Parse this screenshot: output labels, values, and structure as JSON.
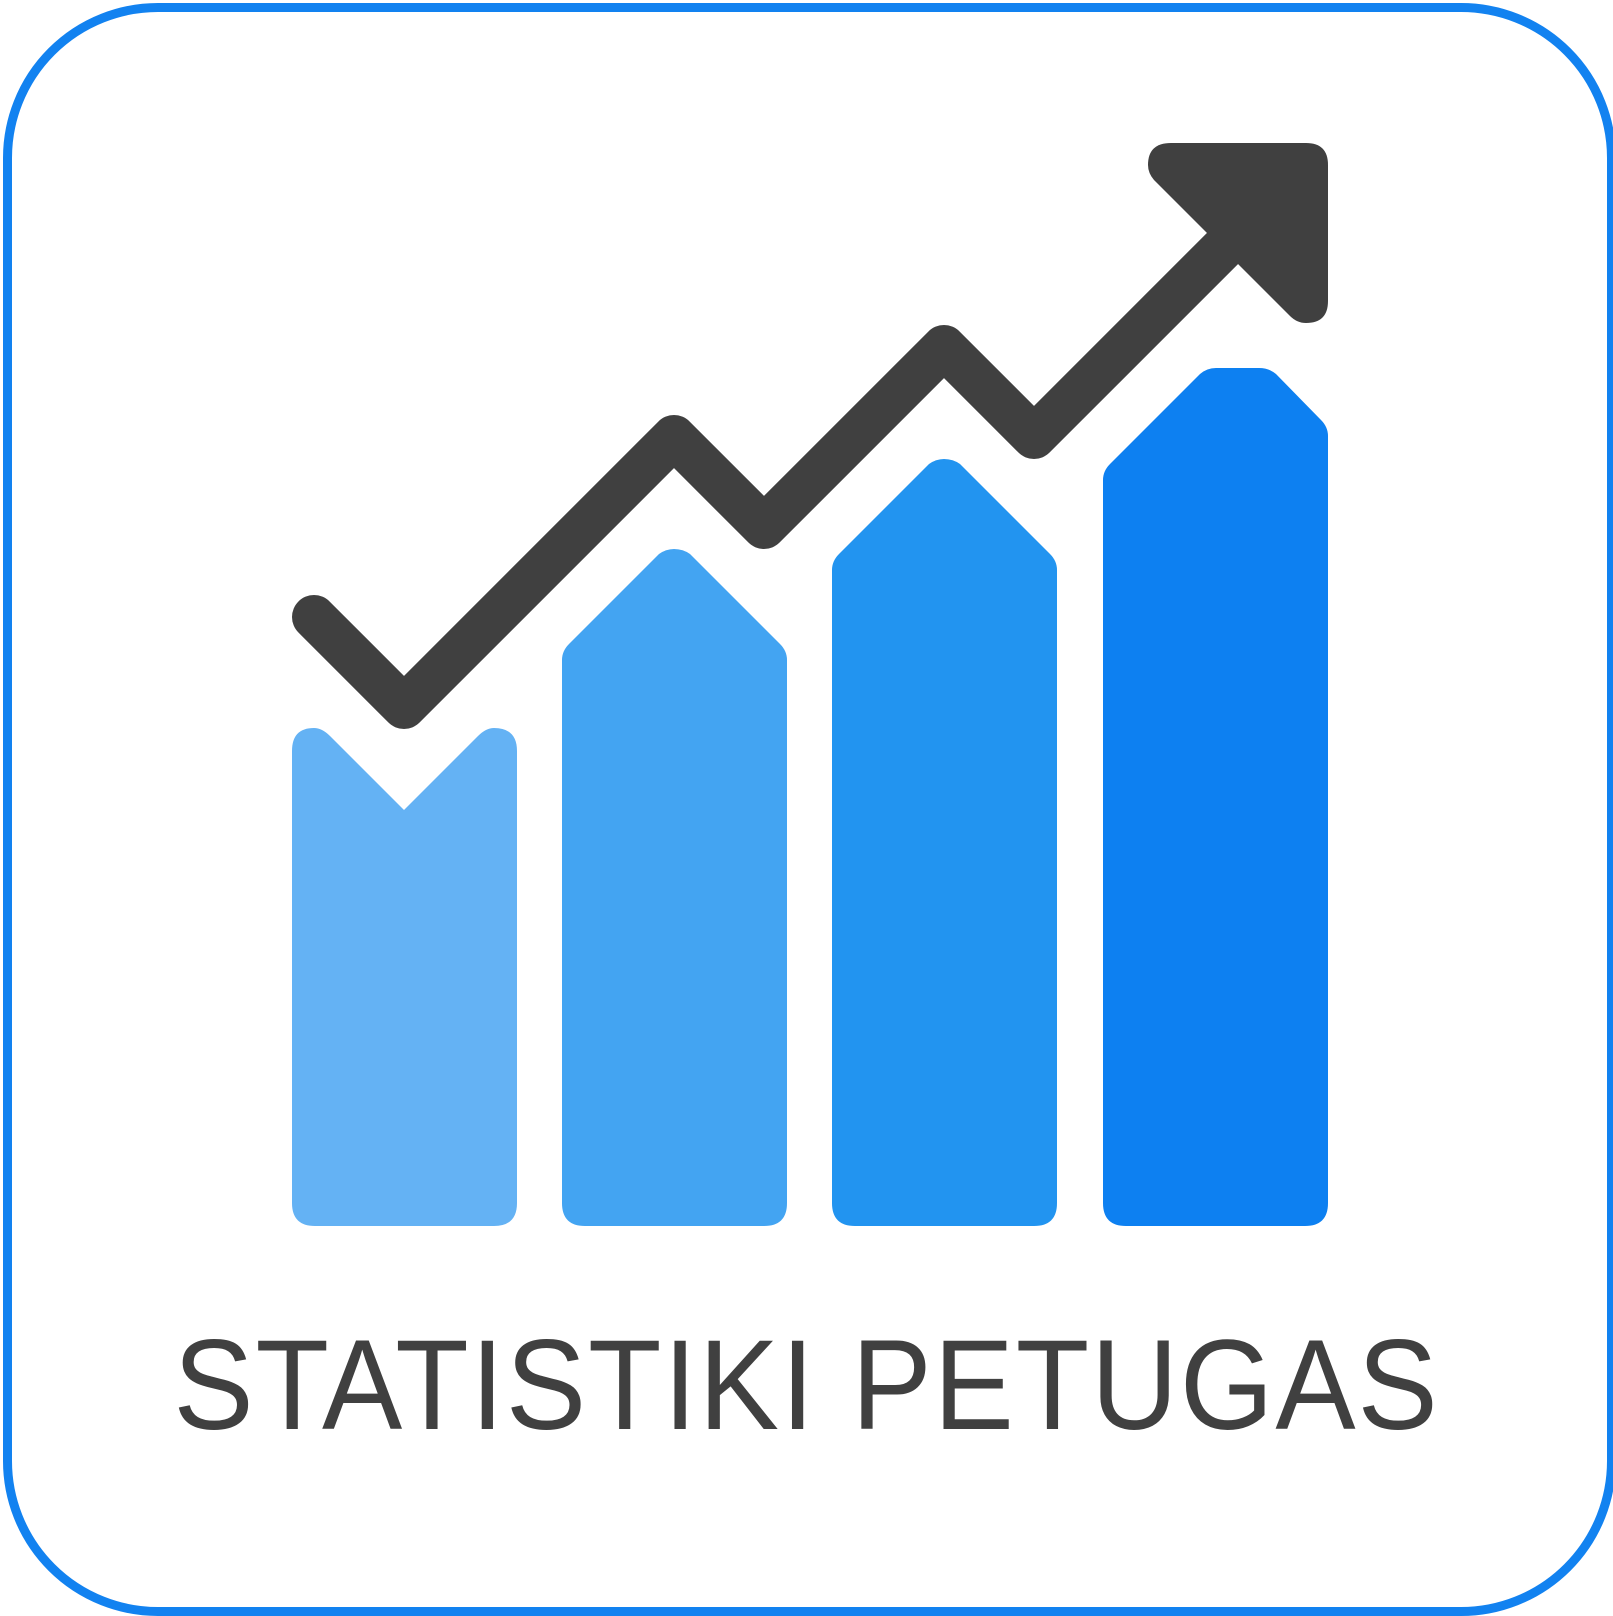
{
  "label": "STATISTIKI PETUGAS",
  "colors": {
    "frame": "#1282F0",
    "ink": "#404040",
    "bar_1": "#64B2F4",
    "bar_2": "#43A4F2",
    "bar_3": "#2294F0",
    "bar_4": "#0D80F1"
  },
  "icon": {
    "name": "trend-up-chart-icon",
    "bar_count": 4,
    "trend": "up"
  }
}
